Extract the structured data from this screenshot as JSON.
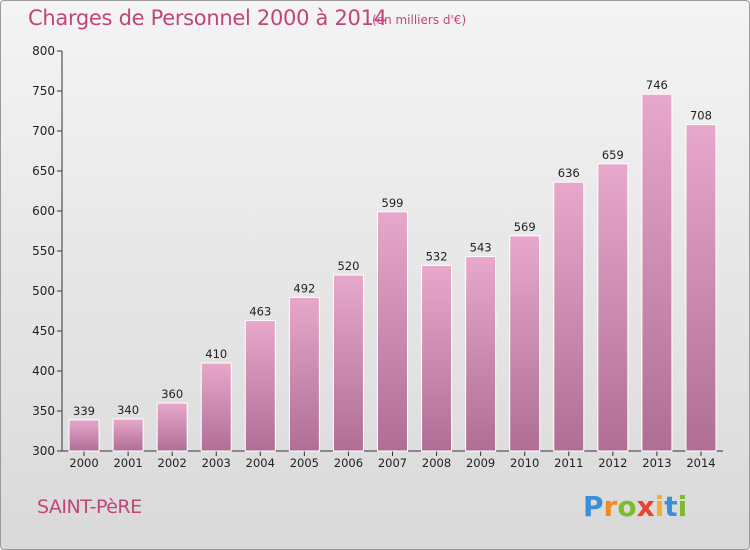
{
  "title": "Charges de Personnel 2000 à 2014",
  "unit": "(en milliers d'€)",
  "commune": "SAINT-PèRE",
  "logo": {
    "letters": [
      {
        "ch": "P",
        "color": "#3a8fd6"
      },
      {
        "ch": "r",
        "color": "#f08a24"
      },
      {
        "ch": "o",
        "color": "#7dbb2b"
      },
      {
        "ch": "x",
        "color": "#e8432e"
      },
      {
        "ch": "i",
        "color": "#f2b02b"
      },
      {
        "ch": "t",
        "color": "#3a8fd6"
      },
      {
        "ch": "i",
        "color": "#7dbb2b"
      }
    ]
  },
  "colors": {
    "bar_top": "#e7a8cb",
    "bar_bottom": "#b06e95",
    "accent": "#c0467a"
  },
  "chart_data": {
    "type": "bar",
    "title": "Charges de Personnel 2000 à 2014",
    "subtitle": "(en milliers d'€)",
    "xlabel": "",
    "ylabel": "",
    "categories": [
      "2000",
      "2001",
      "2002",
      "2003",
      "2004",
      "2005",
      "2006",
      "2007",
      "2008",
      "2009",
      "2010",
      "2011",
      "2012",
      "2013",
      "2014"
    ],
    "values": [
      339,
      340,
      360,
      410,
      463,
      492,
      520,
      599,
      532,
      543,
      569,
      636,
      659,
      746,
      708
    ],
    "ylim": [
      300,
      800
    ],
    "yticks": [
      300,
      350,
      400,
      450,
      500,
      550,
      600,
      650,
      700,
      750,
      800
    ],
    "grid": false,
    "legend": "none"
  }
}
